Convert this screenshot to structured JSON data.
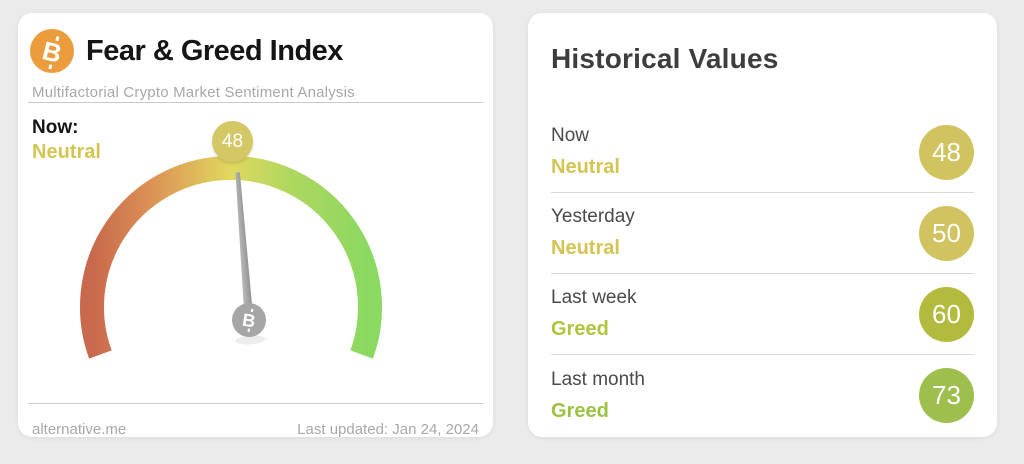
{
  "page": {
    "background": "#ebebeb"
  },
  "left_card": {
    "title": "Fear & Greed Index",
    "subtitle": "Multifactorial Crypto Market Sentiment Analysis",
    "bitcoin_icon_color": "#eb9c3d",
    "now_label": "Now:",
    "now_sentiment": "Neutral",
    "now_sentiment_color": "#d4c552",
    "footer_left": "alternative.me",
    "footer_right": "Last updated: Jan 24, 2024"
  },
  "right_card": {
    "title": "Historical Values",
    "rows": [
      {
        "label": "Now",
        "sentiment": "Neutral",
        "value": "48",
        "text_color": "#d4c552",
        "badge_color": "#d1c460"
      },
      {
        "label": "Yesterday",
        "sentiment": "Neutral",
        "value": "50",
        "text_color": "#d4c552",
        "badge_color": "#d1c460"
      },
      {
        "label": "Last week",
        "sentiment": "Greed",
        "value": "60",
        "text_color": "#b4c33c",
        "badge_color": "#b3bb3e"
      },
      {
        "label": "Last month",
        "sentiment": "Greed",
        "value": "73",
        "text_color": "#9dc243",
        "badge_color": "#9dbf4d"
      }
    ]
  },
  "chart_data": {
    "type": "gauge",
    "title": "Fear & Greed Index",
    "value": 48,
    "label": "48",
    "classification": "Neutral",
    "min": 0,
    "max": 100,
    "arc_span_degrees": 220,
    "badge_color": "#d4c766",
    "needle_color": "#a5a5a5",
    "hub_color": "#a6a6a6",
    "gradient_stops": [
      {
        "offset": 0,
        "color": "#c8684c"
      },
      {
        "offset": 22,
        "color": "#dc9355"
      },
      {
        "offset": 50,
        "color": "#e0d95f"
      },
      {
        "offset": 72,
        "color": "#aed75f"
      },
      {
        "offset": 100,
        "color": "#8ad961"
      }
    ]
  }
}
